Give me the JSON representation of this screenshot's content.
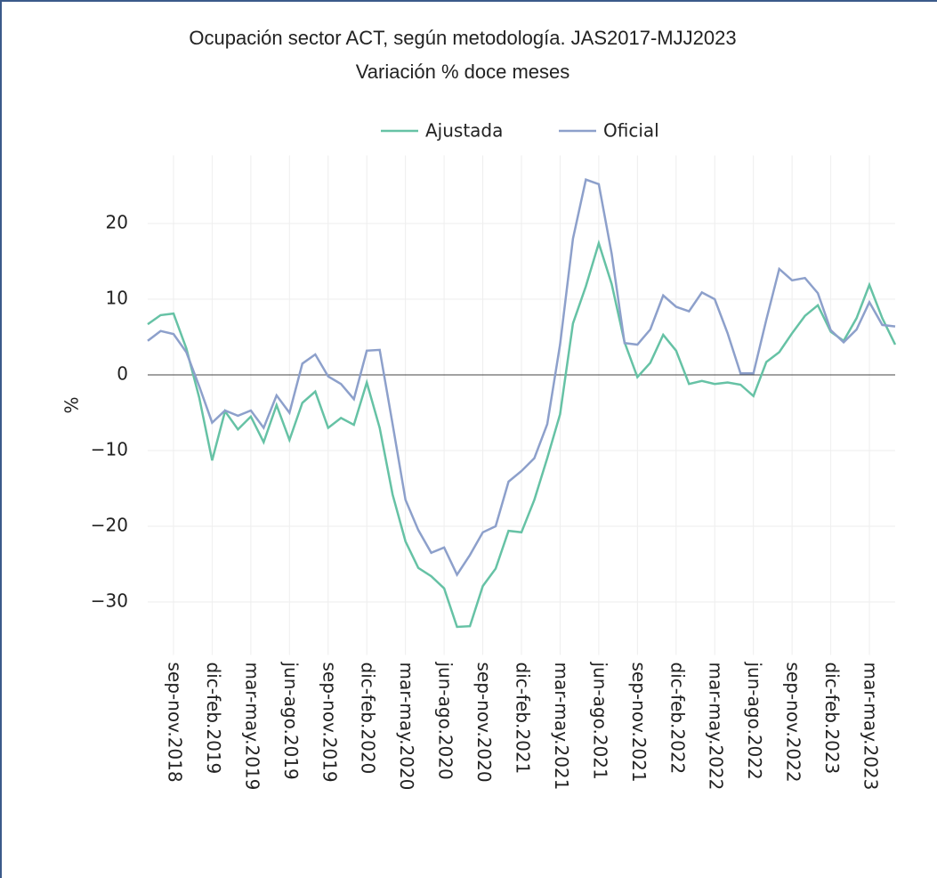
{
  "chart_data": {
    "type": "line",
    "title": "Ocupación sector ACT, según metodología. JAS2017-MJJ2023",
    "subtitle": "Variación % doce meses",
    "y_label": "%",
    "categories": [
      null,
      null,
      "sep-nov.2018",
      null,
      null,
      "dic-feb.2019",
      null,
      null,
      "mar-may.2019",
      null,
      null,
      "jun-ago.2019",
      null,
      null,
      "sep-nov.2019",
      null,
      null,
      "dic-feb.2020",
      null,
      null,
      "mar-may.2020",
      null,
      null,
      "jun-ago.2020",
      null,
      null,
      "sep-nov.2020",
      null,
      null,
      "dic-feb.2021",
      null,
      null,
      "mar-may.2021",
      null,
      null,
      "jun-ago.2021",
      null,
      null,
      "sep-nov.2021",
      null,
      null,
      "dic-feb.2022",
      null,
      null,
      "mar-may.2022",
      null,
      null,
      "jun-ago.2022",
      null,
      null,
      "sep-nov.2022",
      null,
      null,
      "dic-feb.2023",
      null,
      null,
      "mar-may.2023",
      null,
      null
    ],
    "series": [
      {
        "name": "Ajustada",
        "color": "#66c2a5",
        "values": [
          6.7,
          7.9,
          8.1,
          3.5,
          -3,
          -11.3,
          -4.8,
          -7.2,
          -5.5,
          -8.9,
          -4,
          -8.6,
          -3.7,
          -2.2,
          -7,
          -5.7,
          -6.6,
          -1,
          -7,
          -15.8,
          -22,
          -25.5,
          -26.6,
          -28.2,
          -33.3,
          -33.2,
          -27.9,
          -25.6,
          -20.6,
          -20.8,
          -16.5,
          -11,
          -5.2,
          6.8,
          11.7,
          17.4,
          12,
          4.3,
          -0.3,
          1.6,
          5.3,
          3.2,
          -1.2,
          -0.8,
          -1.2,
          -1,
          -1.3,
          -2.8,
          1.7,
          3,
          5.5,
          7.8,
          9.2,
          5.7,
          4.5,
          7.5,
          11.9,
          7.5,
          4
        ]
      },
      {
        "name": "Oficial",
        "color": "#8da0cb",
        "values": [
          4.5,
          5.8,
          5.4,
          3,
          -1.5,
          -6.3,
          -4.7,
          -5.4,
          -4.7,
          -7,
          -2.7,
          -5,
          1.5,
          2.7,
          -0.2,
          -1.2,
          -3.2,
          3.2,
          3.3,
          -6.5,
          -16.5,
          -20.5,
          -23.5,
          -22.8,
          -26.4,
          -23.8,
          -20.8,
          -20,
          -14.1,
          -12.7,
          -11,
          -6.5,
          4,
          18,
          25.8,
          25.2,
          16,
          4.2,
          4,
          6,
          10.5,
          9,
          8.4,
          10.9,
          10,
          5.5,
          0.2,
          0.2,
          7.3,
          14,
          12.5,
          12.8,
          10.8,
          5.9,
          4.3,
          6,
          9.6,
          6.6,
          6.4
        ]
      }
    ],
    "ylim": [
      -37,
      29
    ],
    "yticks": [
      {
        "value": -30,
        "label": "−30"
      },
      {
        "value": -20,
        "label": "−20"
      },
      {
        "value": -10,
        "label": "−10"
      },
      0,
      10,
      20
    ],
    "grid": true,
    "legend": "top"
  }
}
